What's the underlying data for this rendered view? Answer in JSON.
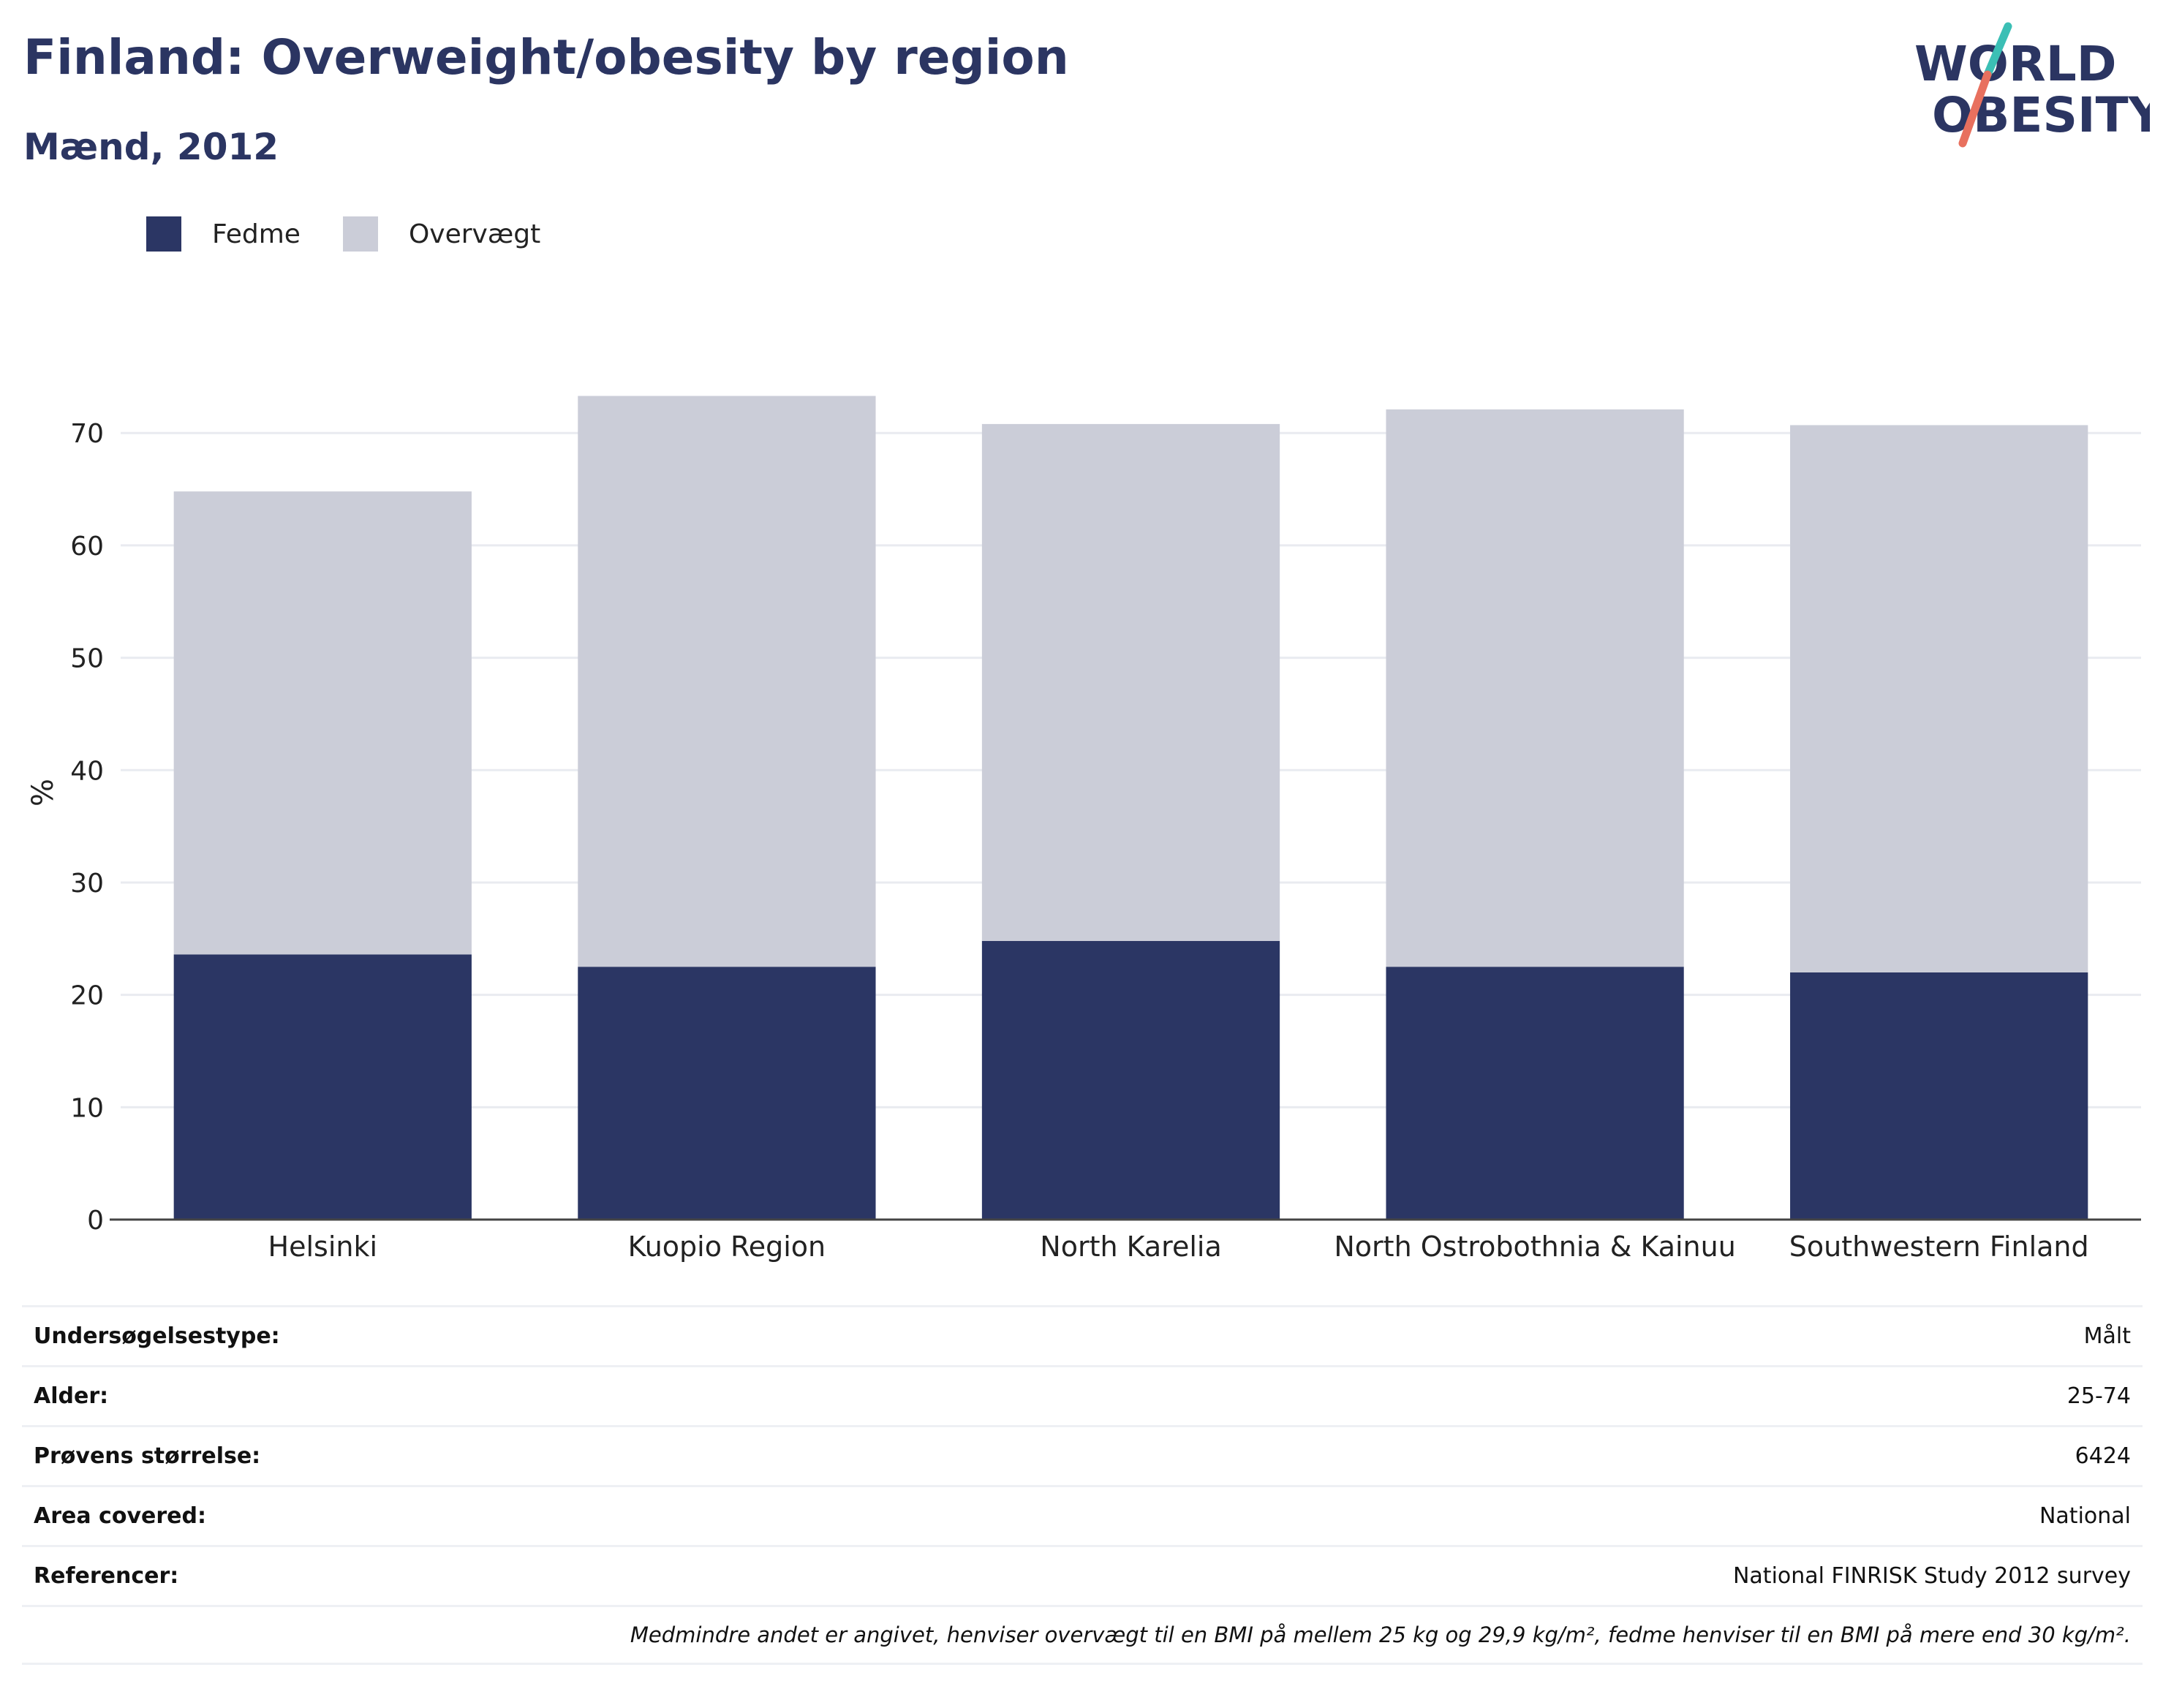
{
  "header": {
    "title": "Finland: Overweight/obesity by region",
    "subtitle": "Mænd, 2012"
  },
  "logo": {
    "line1": "WORLD",
    "line2": "OBESITY",
    "colors": {
      "text": "#2b3562",
      "slash_top": "#3bbfb5",
      "slash_bottom": "#e8705e"
    }
  },
  "legend": [
    {
      "label": "Fedme",
      "color": "#2b3664"
    },
    {
      "label": "Overvægt",
      "color": "#cbcdd8"
    }
  ],
  "chart_data": {
    "type": "bar",
    "stacked": true,
    "categories": [
      "Helsinki",
      "Kuopio Region",
      "North Karelia",
      "North Ostrobothnia & Kainuu",
      "Southwestern Finland"
    ],
    "series": [
      {
        "name": "Fedme",
        "color": "#2b3664",
        "values": [
          23.6,
          22.5,
          24.8,
          22.5,
          22.0
        ]
      },
      {
        "name": "Overvægt",
        "color": "#cbcdd8",
        "values": [
          41.2,
          50.8,
          46.0,
          49.6,
          48.7
        ]
      }
    ],
    "ylabel": "%",
    "ylim": [
      0,
      76
    ],
    "yticks": [
      0,
      10,
      20,
      30,
      40,
      50,
      60,
      70
    ],
    "grid": true,
    "legend_position": "top-left"
  },
  "meta": [
    {
      "key": "Undersøgelsestype:",
      "value": "Målt"
    },
    {
      "key": "Alder:",
      "value": "25-74"
    },
    {
      "key": "Prøvens størrelse:",
      "value": "6424"
    },
    {
      "key": "Area covered:",
      "value": "National"
    },
    {
      "key": "Referencer:",
      "value": "National FINRISK Study 2012 survey"
    }
  ],
  "footnote": "Medmindre andet er angivet, henviser overvægt til en BMI på mellem 25 kg og 29,9 kg/m², fedme henviser til en BMI på mere end 30 kg/m²."
}
